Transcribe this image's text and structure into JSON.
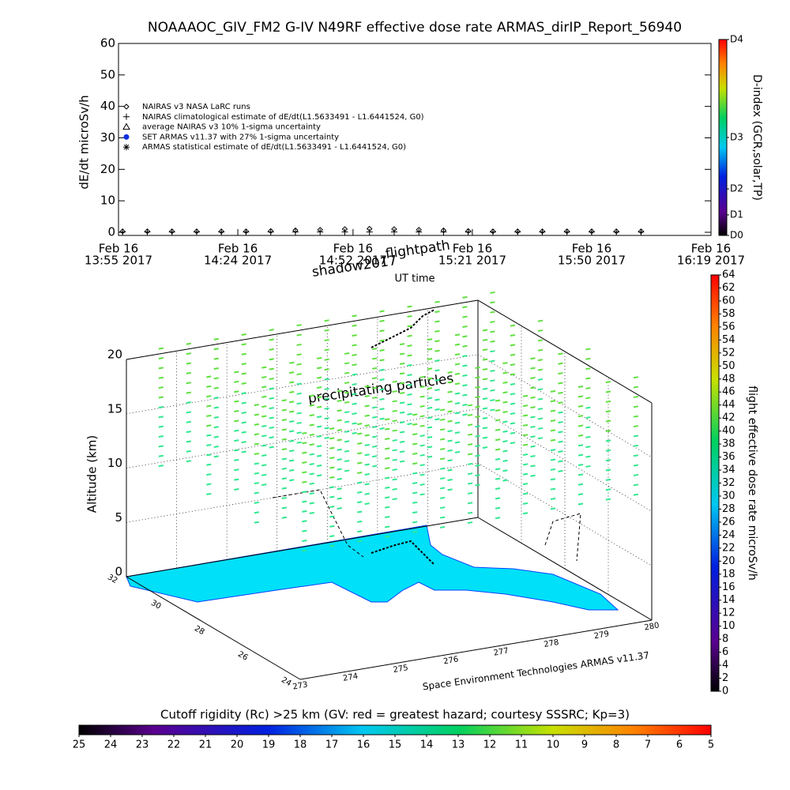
{
  "chart_data": [
    {
      "type": "line",
      "title": "NOAAAOC_GIV_FM2 G-IV    N49RF   effective dose rate ARMAS_dirIP_Report_56940",
      "ylabel": "dE/dt microSv/h",
      "xlabel": "UT time",
      "ylim": [
        -1,
        60
      ],
      "yticks": [
        0,
        10,
        20,
        30,
        40,
        50,
        60
      ],
      "xlim": [
        "2017-02-16T13:55",
        "2017-02-16T16:19"
      ],
      "xticks": [
        {
          "value": "2017-02-16T13:55",
          "label": [
            "Feb 16",
            "13:55 2017"
          ]
        },
        {
          "value": "2017-02-16T14:24",
          "label": [
            "Feb 16",
            "14:24 2017"
          ]
        },
        {
          "value": "2017-02-16T14:52",
          "label": [
            "Feb 16",
            "14:52 2017"
          ]
        },
        {
          "value": "2017-02-16T15:21",
          "label": [
            "Feb 16",
            "15:21 2017"
          ]
        },
        {
          "value": "2017-02-16T15:50",
          "label": [
            "Feb 16",
            "15:50 2017"
          ]
        },
        {
          "value": "2017-02-16T16:19",
          "label": [
            "Feb 16",
            "16:19 2017"
          ]
        }
      ],
      "x": [
        "2017-02-16T13:56",
        "2017-02-16T14:02",
        "2017-02-16T14:08",
        "2017-02-16T14:14",
        "2017-02-16T14:20",
        "2017-02-16T14:26",
        "2017-02-16T14:32",
        "2017-02-16T14:38",
        "2017-02-16T14:44",
        "2017-02-16T14:50",
        "2017-02-16T14:56",
        "2017-02-16T15:02",
        "2017-02-16T15:08",
        "2017-02-16T15:14",
        "2017-02-16T15:20",
        "2017-02-16T15:26",
        "2017-02-16T15:32",
        "2017-02-16T15:38",
        "2017-02-16T15:44",
        "2017-02-16T15:50",
        "2017-02-16T15:56",
        "2017-02-16T16:02"
      ],
      "series": [
        {
          "name": "NAIRAS v3 NASA LaRC runs",
          "marker": "diamond",
          "color": "#000000",
          "values": [
            0.3,
            0.3,
            0.3,
            0.3,
            0.3,
            0.3,
            0.4,
            0.6,
            0.8,
            1.0,
            1.1,
            1.0,
            0.8,
            0.6,
            0.4,
            0.3,
            0.3,
            0.3,
            0.3,
            0.3,
            0.3,
            0.3
          ]
        },
        {
          "name": "NAIRAS climatological estimate of dE/dt(L1.5633491 - L1.6441524, G0)",
          "marker": "plus",
          "color": "#000000",
          "values": [
            0.1,
            0.1,
            0.1,
            0.1,
            0.1,
            0.1,
            0.1,
            0.1,
            0.1,
            0.1,
            0.1,
            0.1,
            0.1,
            0.1,
            0.1,
            0.1,
            0.1,
            0.1,
            0.1,
            0.1,
            0.1,
            0.1
          ]
        },
        {
          "name": "average NAIRAS v3 10% 1-sigma uncertainty",
          "marker": "triangle",
          "color": "#000000",
          "values": [
            null,
            null,
            null,
            null,
            null,
            null,
            null,
            null,
            null,
            null,
            null,
            null,
            null,
            null,
            null,
            null,
            null,
            null,
            null,
            null,
            null,
            null
          ]
        },
        {
          "name": "SET ARMAS v11.37 with 27% 1-sigma uncertainty",
          "marker": "dot",
          "color": "#1030e0",
          "values": [
            null,
            null,
            null,
            null,
            null,
            null,
            null,
            null,
            null,
            null,
            null,
            null,
            null,
            null,
            null,
            null,
            null,
            null,
            null,
            null,
            null,
            null
          ]
        },
        {
          "name": "ARMAS statistical estimate of dE/dt(L1.5633491 - L1.6441524, G0)",
          "marker": "asterisk",
          "color": "#000000",
          "values": [
            null,
            null,
            null,
            null,
            null,
            null,
            null,
            null,
            null,
            null,
            null,
            null,
            null,
            null,
            null,
            null,
            null,
            null,
            null,
            null,
            null,
            null
          ]
        }
      ]
    },
    {
      "type": "map3d",
      "zlabel": "Altitude (km)",
      "zlim": [
        0,
        20
      ],
      "zticks": [
        0,
        5,
        10,
        15,
        20
      ],
      "ylim": [
        24,
        32
      ],
      "yticks": [
        24,
        26,
        28,
        30,
        32
      ],
      "xlim": [
        273,
        280
      ],
      "xticks": [
        273,
        274,
        275,
        276,
        277,
        278,
        279,
        280
      ],
      "annotations": [
        "shadow2017",
        "flightpath",
        "precipitating particles"
      ],
      "credit": "Space Environment Technologies ARMAS v11.37"
    },
    {
      "type": "colorbar",
      "orientation": "vertical",
      "label": "D-index (GCR,solar,TP)",
      "lim": [
        0,
        4
      ],
      "ticks": [
        {
          "value": 0,
          "label": "D0"
        },
        {
          "value": 0.42,
          "label": "D1"
        },
        {
          "value": 0.95,
          "label": "D2"
        },
        {
          "value": 2.0,
          "label": "D3"
        },
        {
          "value": 4,
          "label": "D4"
        }
      ]
    },
    {
      "type": "colorbar",
      "orientation": "vertical",
      "label": "flight effective dose rate microSv/h",
      "lim": [
        0,
        64
      ],
      "ticks": [
        0,
        2,
        4,
        6,
        8,
        10,
        12,
        14,
        16,
        18,
        20,
        22,
        24,
        26,
        28,
        30,
        32,
        34,
        36,
        38,
        40,
        42,
        44,
        46,
        48,
        50,
        52,
        54,
        56,
        58,
        60,
        62,
        64
      ]
    },
    {
      "type": "colorbar",
      "orientation": "horizontal",
      "label": "Cutoff rigidity (Rc) >25 km (GV: red = greatest hazard; courtesy SSSRC; Kp=3)",
      "lim": [
        25,
        5
      ],
      "ticks": [
        25,
        24,
        23,
        22,
        21,
        20,
        19,
        18,
        17,
        16,
        15,
        14,
        13,
        12,
        11,
        10,
        9,
        8,
        7,
        6,
        5
      ]
    }
  ]
}
